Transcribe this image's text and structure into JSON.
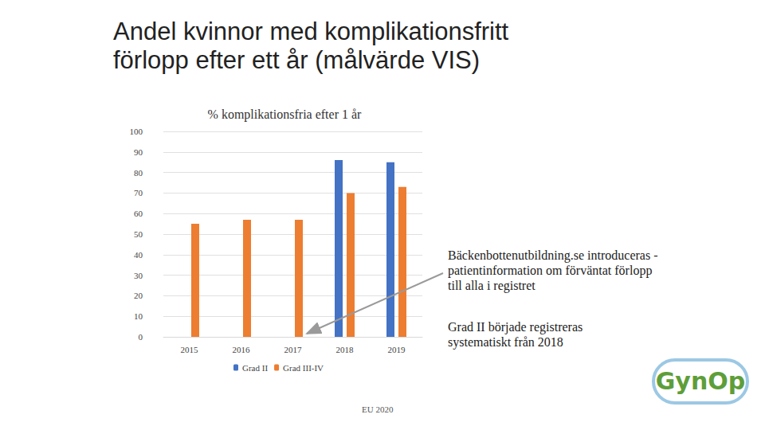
{
  "heading": [
    "Andel kvinnor med komplikationsfritt",
    "förlopp efter ett år (målvärde VIS)"
  ],
  "chart_data": {
    "type": "bar",
    "title": "% komplikationsfria efter 1 år",
    "categories": [
      "2015",
      "2016",
      "2017",
      "2018",
      "2019"
    ],
    "series": [
      {
        "name": "Grad II",
        "color": "#4472c4",
        "values": [
          null,
          null,
          null,
          86,
          85
        ]
      },
      {
        "name": "Grad III-IV",
        "color": "#ed7d31",
        "values": [
          55,
          57,
          57,
          70,
          73
        ]
      }
    ],
    "ylim": [
      0,
      100
    ],
    "yticks": [
      0,
      10,
      20,
      30,
      40,
      50,
      60,
      70,
      80,
      90,
      100
    ],
    "grid": true,
    "legend": "bottom",
    "annotations": [
      "Bäckenbottenutbildning.se introduceras - patientinformation om förväntat förlopp till alla i registret",
      "Grad II började registreras systematiskt från 2018"
    ]
  },
  "footer": "EU 2020",
  "logo": "GynOp"
}
